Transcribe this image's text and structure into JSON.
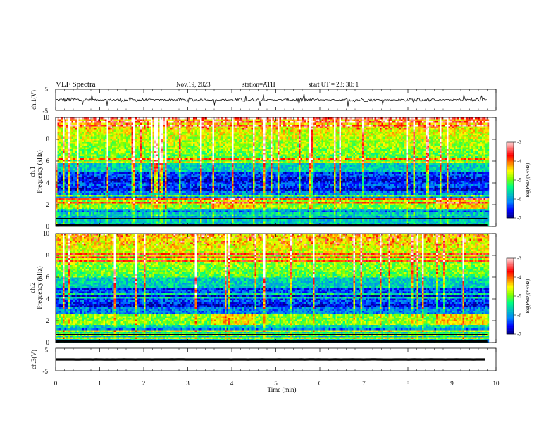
{
  "header": {
    "title": "VLF  Spectra",
    "date": "Nov.19, 2023",
    "station": "station=ATH",
    "start": "start  UT  =   23: 30: 1"
  },
  "chart_data": [
    {
      "type": "line",
      "name": "ch1-waveform",
      "ylabel": "ch.1(V)",
      "ylim": [
        -5,
        5
      ],
      "yticks": [
        "5",
        "-5"
      ],
      "xlim": [
        0,
        10
      ],
      "data_extent_min": 9.8,
      "baseline": 0,
      "noise_amplitude": 0.6
    },
    {
      "type": "heatmap",
      "name": "ch1-spectrogram",
      "ylabel": "ch.1\nFrequency (kHz)",
      "ylabel_lines": [
        "ch.1",
        "Frequency  (kHz)"
      ],
      "ylim": [
        0,
        10
      ],
      "yticks": [
        "0",
        "2",
        "4",
        "6",
        "8",
        "10"
      ],
      "xlim": [
        0,
        10
      ],
      "data_extent_min": 9.8,
      "colorbar": {
        "label": "log(PSD)(V²/Hz)",
        "min": -7,
        "max": -3,
        "ticks": [
          "-3",
          "-4",
          "-5",
          "-6",
          "-7"
        ]
      }
    },
    {
      "type": "heatmap",
      "name": "ch2-spectrogram",
      "ylabel_lines": [
        "ch.2",
        "Frequency  (kHz)"
      ],
      "ylim": [
        0,
        10
      ],
      "yticks": [
        "0",
        "2",
        "4",
        "6",
        "8",
        "10"
      ],
      "xlim": [
        0,
        10
      ],
      "data_extent_min": 9.8,
      "colorbar": {
        "label": "log(PSD)(V²/Hz)",
        "min": -7,
        "max": -3,
        "ticks": [
          "-3",
          "-4",
          "-5",
          "-6",
          "-7"
        ]
      }
    },
    {
      "type": "line",
      "name": "ch3-waveform",
      "ylabel": "ch.3(V)",
      "ylim": [
        -5,
        5
      ],
      "yticks": [
        "5",
        "-5"
      ],
      "xlim": [
        0,
        10
      ],
      "data_extent_min": 9.8,
      "baseline": 0,
      "noise_amplitude": 0.02
    }
  ],
  "xaxis": {
    "label": "Time  (min)",
    "ticks": [
      "0",
      "1",
      "2",
      "3",
      "4",
      "5",
      "6",
      "7",
      "8",
      "9",
      "10"
    ]
  },
  "colors": {
    "scale": [
      "#000080",
      "#0000ff",
      "#0080ff",
      "#00c0c0",
      "#00ff80",
      "#80ff00",
      "#ffff00",
      "#ff8000",
      "#ff0000",
      "#ff8080",
      "#ffffff"
    ]
  }
}
